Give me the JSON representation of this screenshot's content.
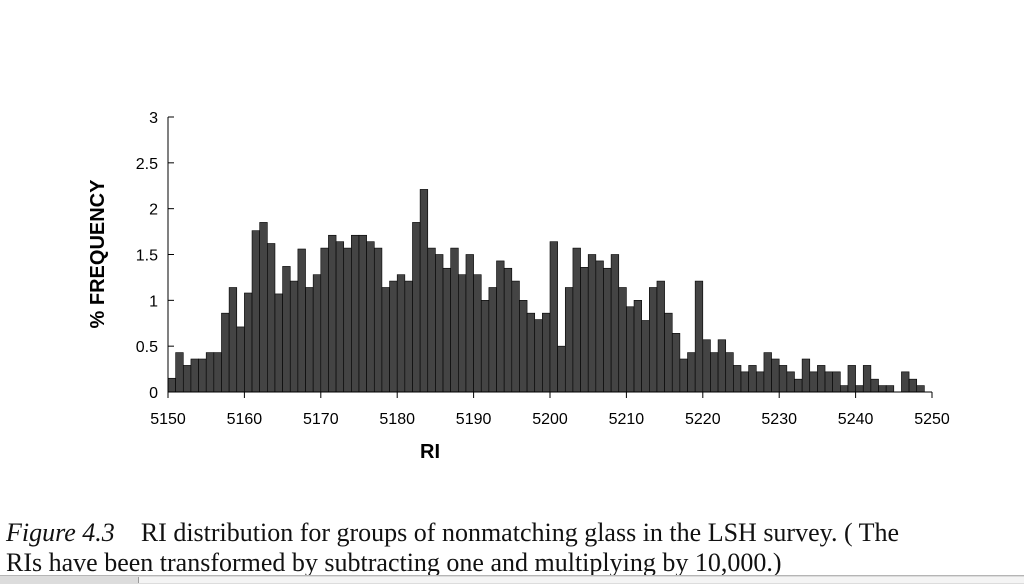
{
  "chart_data": {
    "type": "bar",
    "xlabel": "RI",
    "ylabel": "% FREQUENCY",
    "xlim": [
      5150,
      5250
    ],
    "ylim": [
      0,
      3
    ],
    "xticks": [
      "5150",
      "5160",
      "5170",
      "5180",
      "5190",
      "5200",
      "5210",
      "5220",
      "5230",
      "5240",
      "5250"
    ],
    "yticks": [
      "0",
      "0.5",
      "1",
      "1.5",
      "2",
      "2.5",
      "3"
    ],
    "bar_color": "#444444",
    "grid": false,
    "x": [
      5150,
      5151,
      5152,
      5153,
      5154,
      5155,
      5156,
      5157,
      5158,
      5159,
      5160,
      5161,
      5162,
      5163,
      5164,
      5165,
      5166,
      5167,
      5168,
      5169,
      5170,
      5171,
      5172,
      5173,
      5174,
      5175,
      5176,
      5177,
      5178,
      5179,
      5180,
      5181,
      5182,
      5183,
      5184,
      5185,
      5186,
      5187,
      5188,
      5189,
      5190,
      5191,
      5192,
      5193,
      5194,
      5195,
      5196,
      5197,
      5198,
      5199,
      5200,
      5201,
      5202,
      5203,
      5204,
      5205,
      5206,
      5207,
      5208,
      5209,
      5210,
      5211,
      5212,
      5213,
      5214,
      5215,
      5216,
      5217,
      5218,
      5219,
      5220,
      5221,
      5222,
      5223,
      5224,
      5225,
      5226,
      5227,
      5228,
      5229,
      5230,
      5231,
      5232,
      5233,
      5234,
      5235,
      5236,
      5237,
      5238,
      5239,
      5240,
      5241,
      5242,
      5243,
      5244,
      5245,
      5246,
      5247,
      5248,
      5249
    ],
    "values": [
      0.15,
      0.43,
      0.29,
      0.36,
      0.36,
      0.43,
      0.43,
      0.86,
      1.14,
      0.71,
      1.08,
      1.76,
      1.85,
      1.62,
      1.07,
      1.37,
      1.21,
      1.56,
      1.14,
      1.28,
      1.57,
      1.71,
      1.64,
      1.57,
      1.71,
      1.71,
      1.64,
      1.57,
      1.14,
      1.21,
      1.28,
      1.21,
      1.85,
      2.21,
      1.57,
      1.5,
      1.35,
      1.57,
      1.28,
      1.5,
      1.28,
      1.0,
      1.14,
      1.43,
      1.35,
      1.21,
      1.0,
      0.86,
      0.79,
      0.86,
      1.64,
      0.5,
      1.14,
      1.57,
      1.36,
      1.5,
      1.43,
      1.35,
      1.5,
      1.14,
      0.93,
      1.0,
      0.78,
      1.14,
      1.21,
      0.86,
      0.64,
      0.36,
      0.43,
      1.21,
      0.57,
      0.43,
      0.57,
      0.43,
      0.29,
      0.22,
      0.29,
      0.22,
      0.43,
      0.36,
      0.29,
      0.22,
      0.14,
      0.36,
      0.22,
      0.29,
      0.22,
      0.22,
      0.07,
      0.29,
      0.07,
      0.29,
      0.14,
      0.07,
      0.07,
      0.0,
      0.22,
      0.14,
      0.07,
      0.0
    ]
  },
  "caption": {
    "label": "Figure 4.3",
    "line1": "RI distribution for groups of nonmatching glass in the LSH survey. ( The",
    "line2": "RIs have been transformed by subtracting one and multiplying by 10,000.)"
  }
}
